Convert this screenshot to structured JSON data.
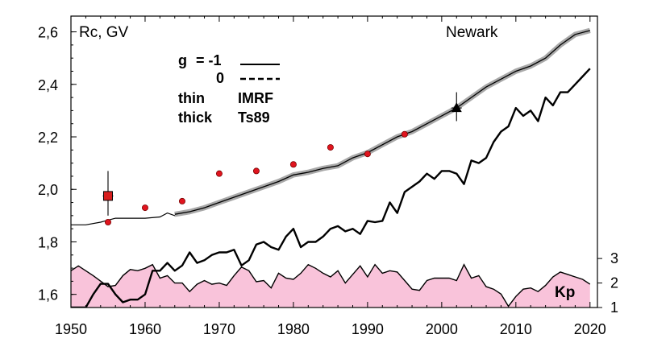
{
  "chart_data": {
    "type": "line",
    "title": "",
    "station": "Newark",
    "ylabel": "Rc, GV",
    "xlabel": "",
    "xlim": [
      1950,
      2021
    ],
    "ylim": [
      1.55,
      2.66
    ],
    "x_ticks": [
      1950,
      1960,
      1970,
      1980,
      1990,
      2000,
      2010,
      2020
    ],
    "y_ticks": [
      1.6,
      1.8,
      2.0,
      2.2,
      2.4,
      2.6
    ],
    "y_tick_labels": [
      "1,6",
      "1,8",
      "2,0",
      "2,2",
      "2,4",
      "2,6"
    ],
    "kp_axis": {
      "label": "Kp",
      "ticks": [
        1,
        2,
        3
      ],
      "range": [
        1,
        3.3
      ],
      "color": "#f9c3da"
    },
    "legend": {
      "g_label": "g",
      "g_eq": "= -1",
      "g_zero": "0",
      "thin_label": "thin",
      "thick_label": "thick",
      "imrf_label": "IMRF",
      "ts89_label": "Ts89"
    },
    "series": [
      {
        "style": "thin",
        "values": [
          [
            1950,
            1.865
          ],
          [
            1952,
            1.865
          ],
          [
            1954,
            1.875
          ],
          [
            1956,
            1.89
          ],
          [
            1958,
            1.89
          ],
          [
            1960,
            1.89
          ],
          [
            1962,
            1.895
          ],
          [
            1963,
            1.91
          ],
          [
            1964,
            1.9
          ],
          [
            1966,
            1.915
          ],
          [
            1968,
            1.93
          ],
          [
            1970,
            1.95
          ],
          [
            1972,
            1.97
          ],
          [
            1974,
            1.99
          ],
          [
            1976,
            2.01
          ],
          [
            1978,
            2.03
          ],
          [
            1980,
            2.055
          ],
          [
            1982,
            2.065
          ],
          [
            1984,
            2.08
          ],
          [
            1986,
            2.09
          ],
          [
            1988,
            2.12
          ],
          [
            1990,
            2.14
          ],
          [
            1992,
            2.17
          ],
          [
            1994,
            2.2
          ],
          [
            1996,
            2.22
          ],
          [
            1998,
            2.25
          ],
          [
            2000,
            2.28
          ],
          [
            2002,
            2.31
          ],
          [
            2004,
            2.35
          ],
          [
            2006,
            2.39
          ],
          [
            2008,
            2.42
          ],
          [
            2010,
            2.45
          ],
          [
            2012,
            2.47
          ],
          [
            2014,
            2.5
          ],
          [
            2016,
            2.55
          ],
          [
            2018,
            2.59
          ],
          [
            2020,
            2.605
          ]
        ]
      },
      {
        "style": "thick-gray",
        "values": [
          [
            1964,
            1.905
          ],
          [
            1966,
            1.915
          ],
          [
            1968,
            1.93
          ],
          [
            1970,
            1.95
          ],
          [
            1972,
            1.97
          ],
          [
            1974,
            1.99
          ],
          [
            1976,
            2.01
          ],
          [
            1978,
            2.03
          ],
          [
            1980,
            2.055
          ],
          [
            1982,
            2.065
          ],
          [
            1984,
            2.08
          ],
          [
            1986,
            2.09
          ],
          [
            1988,
            2.12
          ],
          [
            1990,
            2.14
          ],
          [
            1992,
            2.17
          ],
          [
            1994,
            2.2
          ],
          [
            1996,
            2.22
          ],
          [
            1998,
            2.25
          ],
          [
            2000,
            2.28
          ],
          [
            2002,
            2.31
          ],
          [
            2004,
            2.35
          ],
          [
            2006,
            2.39
          ],
          [
            2008,
            2.42
          ],
          [
            2010,
            2.45
          ],
          [
            2012,
            2.47
          ],
          [
            2014,
            2.5
          ],
          [
            2016,
            2.55
          ],
          [
            2018,
            2.59
          ],
          [
            2020,
            2.605
          ]
        ]
      },
      {
        "style": "thick-black",
        "values": [
          [
            1950,
            1.55
          ],
          [
            1952,
            1.55
          ],
          [
            1953,
            1.6
          ],
          [
            1954,
            1.64
          ],
          [
            1955,
            1.64
          ],
          [
            1956,
            1.6
          ],
          [
            1957,
            1.57
          ],
          [
            1958,
            1.58
          ],
          [
            1959,
            1.58
          ],
          [
            1960,
            1.6
          ],
          [
            1961,
            1.69
          ],
          [
            1962,
            1.69
          ],
          [
            1963,
            1.72
          ],
          [
            1964,
            1.69
          ],
          [
            1965,
            1.71
          ],
          [
            1966,
            1.76
          ],
          [
            1967,
            1.72
          ],
          [
            1968,
            1.73
          ],
          [
            1969,
            1.75
          ],
          [
            1970,
            1.76
          ],
          [
            1971,
            1.76
          ],
          [
            1972,
            1.77
          ],
          [
            1973,
            1.71
          ],
          [
            1974,
            1.73
          ],
          [
            1975,
            1.79
          ],
          [
            1976,
            1.8
          ],
          [
            1977,
            1.78
          ],
          [
            1978,
            1.77
          ],
          [
            1979,
            1.82
          ],
          [
            1980,
            1.85
          ],
          [
            1981,
            1.78
          ],
          [
            1982,
            1.8
          ],
          [
            1983,
            1.8
          ],
          [
            1984,
            1.82
          ],
          [
            1985,
            1.85
          ],
          [
            1986,
            1.86
          ],
          [
            1987,
            1.84
          ],
          [
            1988,
            1.85
          ],
          [
            1989,
            1.83
          ],
          [
            1990,
            1.88
          ],
          [
            1991,
            1.875
          ],
          [
            1992,
            1.88
          ],
          [
            1993,
            1.95
          ],
          [
            1994,
            1.91
          ],
          [
            1995,
            1.99
          ],
          [
            1996,
            2.01
          ],
          [
            1997,
            2.03
          ],
          [
            1998,
            2.06
          ],
          [
            1999,
            2.04
          ],
          [
            2000,
            2.07
          ],
          [
            2001,
            2.07
          ],
          [
            2002,
            2.06
          ],
          [
            2003,
            2.02
          ],
          [
            2004,
            2.11
          ],
          [
            2005,
            2.1
          ],
          [
            2006,
            2.12
          ],
          [
            2007,
            2.18
          ],
          [
            2008,
            2.22
          ],
          [
            2009,
            2.24
          ],
          [
            2010,
            2.31
          ],
          [
            2011,
            2.28
          ],
          [
            2012,
            2.3
          ],
          [
            2013,
            2.26
          ],
          [
            2014,
            2.35
          ],
          [
            2015,
            2.32
          ],
          [
            2016,
            2.37
          ],
          [
            2017,
            2.37
          ],
          [
            2018,
            2.4
          ],
          [
            2019,
            2.43
          ],
          [
            2020,
            2.46
          ]
        ]
      }
    ],
    "observed_points": [
      {
        "x": 1955,
        "y": 1.875,
        "marker": "dot"
      },
      {
        "x": 1960,
        "y": 1.93,
        "marker": "dot"
      },
      {
        "x": 1965,
        "y": 1.955,
        "marker": "dot"
      },
      {
        "x": 1970,
        "y": 2.06,
        "marker": "dot"
      },
      {
        "x": 1975,
        "y": 2.07,
        "marker": "dot"
      },
      {
        "x": 1980,
        "y": 2.095,
        "marker": "dot"
      },
      {
        "x": 1985,
        "y": 2.16,
        "marker": "dot"
      },
      {
        "x": 1990,
        "y": 2.135,
        "marker": "dot"
      },
      {
        "x": 1995,
        "y": 2.21,
        "marker": "dot"
      },
      {
        "x": 1955,
        "y": 1.975,
        "marker": "square",
        "y_err": [
          1.9,
          2.07
        ],
        "x_err": [
          1954.3,
          1955.7
        ]
      },
      {
        "x": 2002,
        "y": 2.31,
        "marker": "triangle",
        "y_err": [
          2.26,
          2.37
        ],
        "x_err": [
          2001.3,
          2002.7
        ]
      }
    ],
    "kp_values": [
      [
        1950,
        2.5
      ],
      [
        1951,
        2.7
      ],
      [
        1953,
        2.3
      ],
      [
        1955,
        1.85
      ],
      [
        1956,
        1.9
      ],
      [
        1957,
        2.3
      ],
      [
        1958,
        2.55
      ],
      [
        1959,
        2.5
      ],
      [
        1960,
        2.6
      ],
      [
        1961,
        2.75
      ],
      [
        1962,
        2.2
      ],
      [
        1963,
        2.3
      ],
      [
        1964,
        2.0
      ],
      [
        1965,
        2.0
      ],
      [
        1966,
        1.65
      ],
      [
        1967,
        1.95
      ],
      [
        1968,
        2.1
      ],
      [
        1969,
        1.95
      ],
      [
        1970,
        2.0
      ],
      [
        1971,
        1.9
      ],
      [
        1972,
        2.3
      ],
      [
        1973,
        2.65
      ],
      [
        1974,
        2.5
      ],
      [
        1975,
        2.05
      ],
      [
        1976,
        2.1
      ],
      [
        1977,
        1.8
      ],
      [
        1978,
        2.4
      ],
      [
        1979,
        2.2
      ],
      [
        1980,
        2.15
      ],
      [
        1981,
        2.4
      ],
      [
        1982,
        2.75
      ],
      [
        1983,
        2.6
      ],
      [
        1984,
        2.4
      ],
      [
        1985,
        2.25
      ],
      [
        1986,
        2.5
      ],
      [
        1987,
        2.0
      ],
      [
        1988,
        2.35
      ],
      [
        1989,
        2.7
      ],
      [
        1990,
        2.25
      ],
      [
        1991,
        2.75
      ],
      [
        1992,
        2.4
      ],
      [
        1993,
        2.5
      ],
      [
        1994,
        2.45
      ],
      [
        1995,
        2.1
      ],
      [
        1996,
        1.75
      ],
      [
        1997,
        1.7
      ],
      [
        1998,
        2.1
      ],
      [
        1999,
        2.2
      ],
      [
        2000,
        2.2
      ],
      [
        2001,
        2.2
      ],
      [
        2002,
        2.1
      ],
      [
        2003,
        2.75
      ],
      [
        2004,
        2.2
      ],
      [
        2005,
        2.3
      ],
      [
        2006,
        1.85
      ],
      [
        2007,
        1.75
      ],
      [
        2008,
        1.55
      ],
      [
        2009,
        1.05
      ],
      [
        2010,
        1.45
      ],
      [
        2011,
        1.75
      ],
      [
        2012,
        1.8
      ],
      [
        2013,
        1.65
      ],
      [
        2014,
        1.9
      ],
      [
        2015,
        2.25
      ],
      [
        2016,
        2.45
      ],
      [
        2017,
        2.35
      ],
      [
        2018,
        2.25
      ],
      [
        2019,
        2.15
      ],
      [
        2020,
        1.95
      ]
    ]
  }
}
